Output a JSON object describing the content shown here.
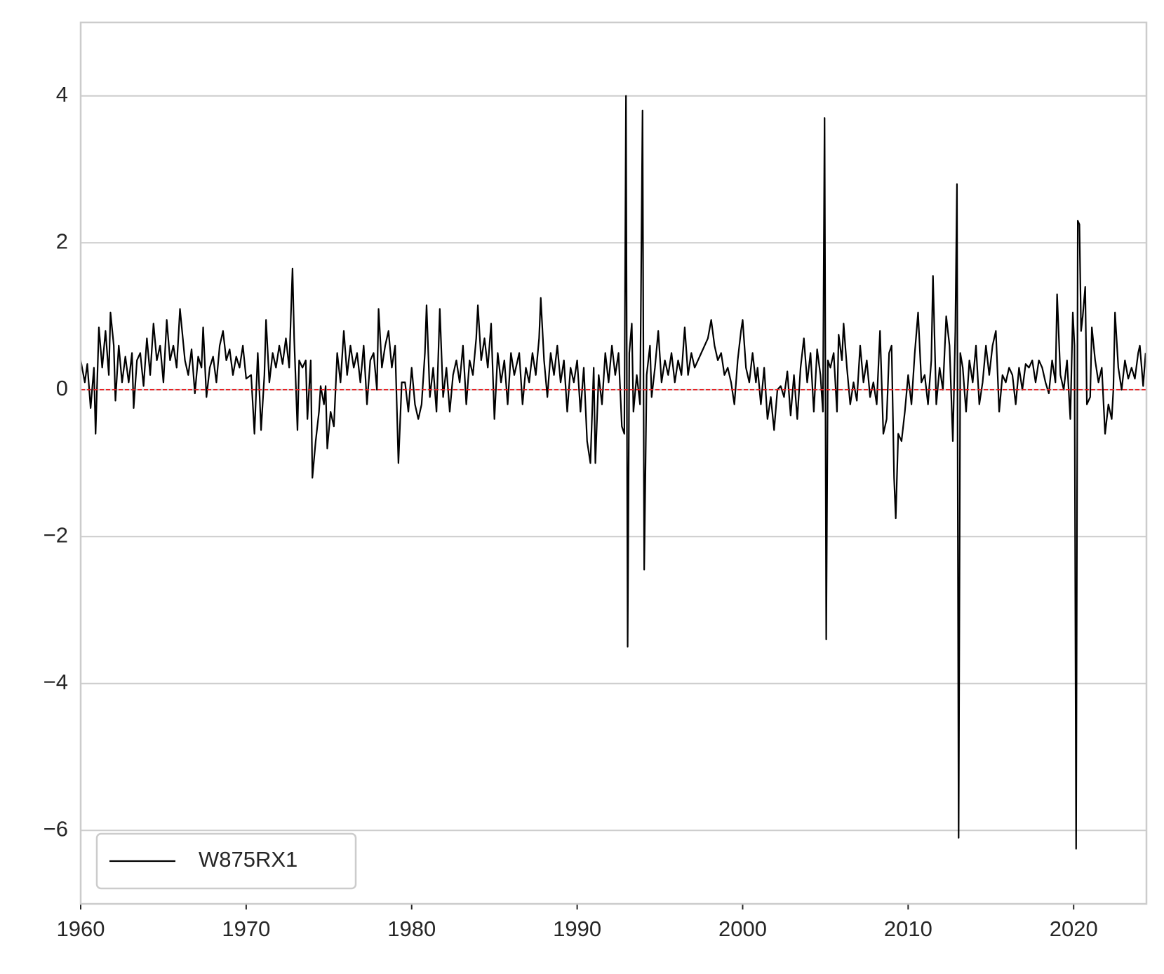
{
  "chart_data": {
    "type": "line",
    "xlim": [
      1960,
      2024.4
    ],
    "ylim": [
      -7,
      5
    ],
    "xticks": [
      1960,
      1970,
      1980,
      1990,
      2000,
      2010,
      2020
    ],
    "yticks": [
      {
        "value": -6,
        "label": "−6"
      },
      {
        "value": -4,
        "label": "−4"
      },
      {
        "value": -2,
        "label": "−2"
      },
      0,
      2,
      4
    ],
    "grid": "y",
    "legend": "lower left",
    "hline": {
      "y": 0,
      "color": "#e8191c",
      "style": "dashed"
    },
    "x": [
      1960.0,
      1960.25,
      1960.4,
      1960.6,
      1960.8,
      1960.9,
      1961.1,
      1961.3,
      1961.5,
      1961.7,
      1961.8,
      1962.0,
      1962.1,
      1962.3,
      1962.5,
      1962.7,
      1962.9,
      1963.1,
      1963.2,
      1963.4,
      1963.6,
      1963.8,
      1964.0,
      1964.2,
      1964.4,
      1964.6,
      1964.8,
      1965.0,
      1965.2,
      1965.4,
      1965.6,
      1965.8,
      1966.0,
      1966.3,
      1966.5,
      1966.7,
      1966.9,
      1967.1,
      1967.3,
      1967.4,
      1967.6,
      1967.8,
      1968.0,
      1968.2,
      1968.4,
      1968.6,
      1968.8,
      1969.0,
      1969.2,
      1969.4,
      1969.6,
      1969.8,
      1970.0,
      1970.3,
      1970.5,
      1970.7,
      1970.9,
      1971.1,
      1971.2,
      1971.4,
      1971.6,
      1971.8,
      1972.0,
      1972.2,
      1972.4,
      1972.6,
      1972.7,
      1972.8,
      1972.9,
      1973.1,
      1973.2,
      1973.4,
      1973.6,
      1973.7,
      1973.9,
      1974.0,
      1974.2,
      1974.4,
      1974.5,
      1974.7,
      1974.8,
      1974.9,
      1975.1,
      1975.3,
      1975.5,
      1975.7,
      1975.9,
      1976.1,
      1976.3,
      1976.5,
      1976.7,
      1976.9,
      1977.1,
      1977.3,
      1977.5,
      1977.7,
      1977.9,
      1978.0,
      1978.2,
      1978.4,
      1978.6,
      1978.8,
      1979.0,
      1979.2,
      1979.4,
      1979.6,
      1979.8,
      1980.0,
      1980.2,
      1980.4,
      1980.6,
      1980.8,
      1980.9,
      1981.1,
      1981.3,
      1981.5,
      1981.7,
      1981.9,
      1982.1,
      1982.3,
      1982.5,
      1982.7,
      1982.9,
      1983.1,
      1983.3,
      1983.5,
      1983.7,
      1983.9,
      1984.0,
      1984.2,
      1984.4,
      1984.6,
      1984.8,
      1985.0,
      1985.2,
      1985.4,
      1985.6,
      1985.8,
      1986.0,
      1986.2,
      1986.5,
      1986.7,
      1986.9,
      1987.1,
      1987.3,
      1987.5,
      1987.7,
      1987.8,
      1988.0,
      1988.2,
      1988.4,
      1988.6,
      1988.8,
      1989.0,
      1989.2,
      1989.4,
      1989.6,
      1989.8,
      1990.0,
      1990.2,
      1990.4,
      1990.6,
      1990.8,
      1991.0,
      1991.1,
      1991.3,
      1991.5,
      1991.7,
      1991.9,
      1992.1,
      1992.3,
      1992.5,
      1992.7,
      1992.85,
      1992.95,
      1993.05,
      1993.15,
      1993.3,
      1993.4,
      1993.6,
      1993.8,
      1993.95,
      1994.05,
      1994.2,
      1994.4,
      1994.5,
      1994.7,
      1994.9,
      1995.1,
      1995.3,
      1995.5,
      1995.7,
      1995.9,
      1996.1,
      1996.3,
      1996.5,
      1996.7,
      1996.9,
      1997.1,
      1997.3,
      1997.5,
      1997.7,
      1997.9,
      1998.1,
      1998.3,
      1998.5,
      1998.7,
      1998.9,
      1999.1,
      1999.3,
      1999.5,
      1999.7,
      1999.9,
      2000.0,
      2000.2,
      2000.4,
      2000.6,
      2000.8,
      2000.9,
      2001.1,
      2001.3,
      2001.5,
      2001.7,
      2001.9,
      2002.1,
      2002.3,
      2002.5,
      2002.7,
      2002.9,
      2003.1,
      2003.3,
      2003.5,
      2003.7,
      2003.9,
      2004.1,
      2004.3,
      2004.5,
      2004.7,
      2004.85,
      2004.95,
      2005.05,
      2005.15,
      2005.3,
      2005.5,
      2005.7,
      2005.8,
      2006.0,
      2006.1,
      2006.3,
      2006.5,
      2006.7,
      2006.9,
      2007.1,
      2007.3,
      2007.5,
      2007.7,
      2007.9,
      2008.1,
      2008.3,
      2008.5,
      2008.7,
      2008.85,
      2009.0,
      2009.15,
      2009.25,
      2009.4,
      2009.6,
      2009.8,
      2010.0,
      2010.2,
      2010.4,
      2010.6,
      2010.8,
      2011.0,
      2011.2,
      2011.4,
      2011.5,
      2011.7,
      2011.9,
      2012.1,
      2012.3,
      2012.5,
      2012.7,
      2012.85,
      2012.95,
      2013.05,
      2013.15,
      2013.3,
      2013.5,
      2013.7,
      2013.9,
      2014.1,
      2014.3,
      2014.5,
      2014.7,
      2014.9,
      2015.1,
      2015.3,
      2015.5,
      2015.7,
      2015.9,
      2016.1,
      2016.3,
      2016.5,
      2016.7,
      2016.9,
      2017.1,
      2017.3,
      2017.5,
      2017.7,
      2017.9,
      2018.1,
      2018.3,
      2018.5,
      2018.7,
      2018.9,
      2019.0,
      2019.2,
      2019.4,
      2019.6,
      2019.8,
      2019.95,
      2020.05,
      2020.15,
      2020.25,
      2020.35,
      2020.45,
      2020.55,
      2020.7,
      2020.8,
      2021.0,
      2021.1,
      2021.3,
      2021.5,
      2021.7,
      2021.9,
      2022.1,
      2022.3,
      2022.4,
      2022.5,
      2022.7,
      2022.9,
      2023.1,
      2023.3,
      2023.5,
      2023.7,
      2023.9,
      2024.0,
      2024.2,
      2024.35
    ],
    "series": [
      {
        "name": "W875RX1",
        "color": "#000000",
        "values": [
          0.4,
          0.1,
          0.35,
          -0.25,
          0.3,
          -0.6,
          0.85,
          0.3,
          0.8,
          0.2,
          1.05,
          0.6,
          -0.15,
          0.6,
          0.1,
          0.45,
          0.1,
          0.5,
          -0.25,
          0.4,
          0.5,
          0.05,
          0.7,
          0.2,
          0.9,
          0.4,
          0.6,
          0.1,
          0.95,
          0.4,
          0.6,
          0.3,
          1.1,
          0.4,
          0.2,
          0.55,
          -0.05,
          0.45,
          0.3,
          0.85,
          -0.1,
          0.3,
          0.45,
          0.1,
          0.6,
          0.8,
          0.4,
          0.55,
          0.2,
          0.45,
          0.3,
          0.6,
          0.15,
          0.2,
          -0.6,
          0.5,
          -0.55,
          0.2,
          0.95,
          0.1,
          0.5,
          0.3,
          0.6,
          0.35,
          0.7,
          0.3,
          1.0,
          1.65,
          0.7,
          -0.55,
          0.4,
          0.3,
          0.4,
          -0.4,
          0.4,
          -1.2,
          -0.7,
          -0.3,
          0.05,
          -0.2,
          0.05,
          -0.8,
          -0.3,
          -0.5,
          0.5,
          0.1,
          0.8,
          0.2,
          0.6,
          0.3,
          0.5,
          0.1,
          0.6,
          -0.2,
          0.4,
          0.5,
          0.0,
          1.1,
          0.3,
          0.6,
          0.8,
          0.3,
          0.6,
          -1.0,
          0.1,
          0.1,
          -0.3,
          0.3,
          -0.2,
          -0.4,
          -0.2,
          0.5,
          1.15,
          -0.1,
          0.3,
          -0.3,
          1.1,
          -0.1,
          0.3,
          -0.3,
          0.2,
          0.4,
          0.1,
          0.6,
          -0.2,
          0.4,
          0.2,
          0.7,
          1.15,
          0.4,
          0.7,
          0.3,
          0.9,
          -0.4,
          0.5,
          0.1,
          0.4,
          -0.2,
          0.5,
          0.2,
          0.5,
          -0.2,
          0.3,
          0.1,
          0.5,
          0.2,
          0.7,
          1.25,
          0.4,
          -0.1,
          0.5,
          0.2,
          0.6,
          0.1,
          0.4,
          -0.3,
          0.3,
          0.1,
          0.4,
          -0.3,
          0.3,
          -0.7,
          -1.0,
          0.3,
          -1.0,
          0.2,
          -0.2,
          0.5,
          0.1,
          0.6,
          0.2,
          0.5,
          -0.5,
          -0.6,
          4.0,
          -3.5,
          0.5,
          0.9,
          -0.3,
          0.2,
          -0.2,
          3.8,
          -2.45,
          0.2,
          0.6,
          -0.1,
          0.3,
          0.8,
          0.1,
          0.4,
          0.2,
          0.5,
          0.1,
          0.4,
          0.2,
          0.85,
          0.2,
          0.5,
          0.3,
          0.4,
          0.5,
          0.6,
          0.7,
          0.95,
          0.6,
          0.4,
          0.5,
          0.2,
          0.3,
          0.1,
          -0.2,
          0.4,
          0.8,
          0.95,
          0.3,
          0.1,
          0.5,
          0.1,
          0.3,
          -0.2,
          0.3,
          -0.4,
          -0.1,
          -0.55,
          0.0,
          0.05,
          -0.1,
          0.25,
          -0.35,
          0.2,
          -0.4,
          0.3,
          0.7,
          0.1,
          0.5,
          -0.3,
          0.55,
          0.2,
          -0.3,
          3.7,
          -3.4,
          0.4,
          0.3,
          0.5,
          -0.3,
          0.75,
          0.4,
          0.9,
          0.3,
          -0.2,
          0.1,
          -0.15,
          0.6,
          0.1,
          0.4,
          -0.1,
          0.1,
          -0.2,
          0.8,
          -0.6,
          -0.4,
          0.5,
          0.6,
          -1.2,
          -1.75,
          -0.6,
          -0.7,
          -0.3,
          0.2,
          -0.2,
          0.5,
          1.05,
          0.1,
          0.2,
          -0.2,
          0.4,
          1.55,
          -0.2,
          0.3,
          0.0,
          1.0,
          0.6,
          -0.7,
          0.8,
          2.8,
          -6.1,
          0.5,
          0.3,
          -0.3,
          0.4,
          0.1,
          0.6,
          -0.2,
          0.1,
          0.6,
          0.2,
          0.6,
          0.8,
          -0.3,
          0.2,
          0.1,
          0.3,
          0.2,
          -0.2,
          0.3,
          0.0,
          0.35,
          0.3,
          0.4,
          0.1,
          0.4,
          0.3,
          0.1,
          -0.05,
          0.4,
          0.1,
          1.3,
          0.2,
          0.0,
          0.4,
          -0.4,
          1.05,
          0.6,
          -6.25,
          2.3,
          2.25,
          0.8,
          1.0,
          1.4,
          -0.2,
          -0.1,
          0.85,
          0.4,
          0.1,
          0.3,
          -0.6,
          -0.2,
          -0.4,
          0.0,
          1.05,
          0.3,
          0.0,
          0.4,
          0.15,
          0.3,
          0.15,
          0.5,
          0.6,
          0.05,
          0.5
        ]
      }
    ]
  }
}
